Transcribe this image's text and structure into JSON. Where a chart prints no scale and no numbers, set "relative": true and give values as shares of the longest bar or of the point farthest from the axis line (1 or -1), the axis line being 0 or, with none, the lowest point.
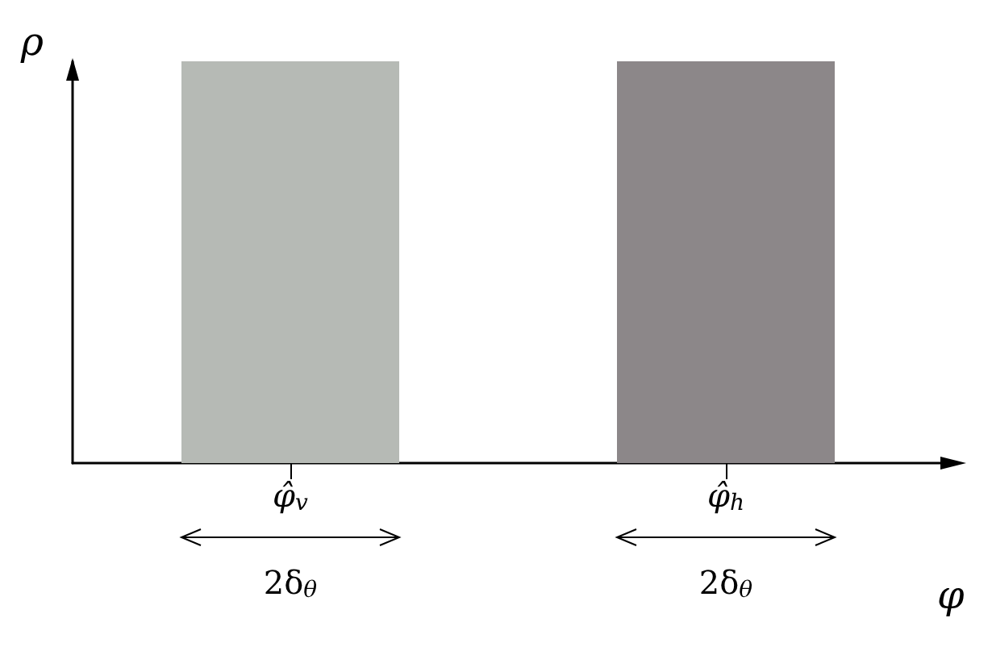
{
  "chart_data": {
    "type": "bar",
    "relative": true,
    "xlabel": "φ",
    "ylabel": "ρ",
    "categories": [
      "φ̂$_{v}$",
      "φ̂$_{h}$"
    ],
    "values": [
      1,
      1
    ],
    "colors": [
      "#b6bab5",
      "#8c8789"
    ],
    "annotations": [
      "2δ$_{θ}$",
      "2δ$_{θ}$"
    ],
    "grid": false
  }
}
